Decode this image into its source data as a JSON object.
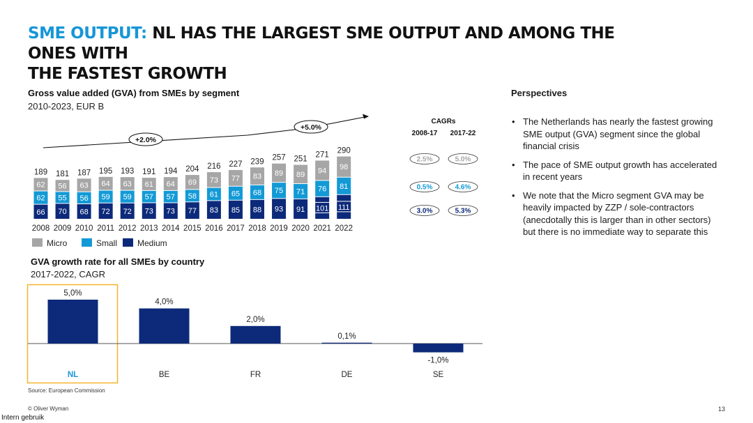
{
  "title": {
    "accent": "SME OUTPUT:",
    "line1": " NL HAS THE LARGEST SME OUTPUT AND AMONG THE ONES WITH",
    "line2": "THE FASTEST GROWTH"
  },
  "colors": {
    "micro": "#a6a6a6",
    "small": "#139ad6",
    "medium": "#0d2a7a",
    "accent": "#1796d6",
    "highlight": "#f3b52e"
  },
  "chart_data": [
    {
      "type": "bar",
      "stacked": true,
      "title": "Gross value added (GVA) from SMEs by segment",
      "subtitle": "2010-2023, EUR B",
      "categories": [
        "2008",
        "2009",
        "2010",
        "2011",
        "2012",
        "2013",
        "2014",
        "2015",
        "2016",
        "2017",
        "2018",
        "2019",
        "2020",
        "2021",
        "2022"
      ],
      "series": [
        {
          "name": "Medium",
          "values": [
            66,
            70,
            68,
            72,
            72,
            73,
            73,
            77,
            83,
            85,
            88,
            93,
            91,
            101,
            111
          ]
        },
        {
          "name": "Small",
          "values": [
            62,
            55,
            56,
            59,
            59,
            57,
            57,
            58,
            61,
            65,
            68,
            75,
            71,
            76,
            81
          ]
        },
        {
          "name": "Micro",
          "values": [
            62,
            56,
            63,
            64,
            63,
            61,
            64,
            69,
            73,
            77,
            83,
            89,
            89,
            94,
            98
          ]
        }
      ],
      "totals": [
        189,
        181,
        187,
        195,
        193,
        191,
        194,
        204,
        216,
        227,
        239,
        257,
        251,
        271,
        290
      ],
      "annotations": [
        {
          "label": "+2.0%"
        },
        {
          "label": "+5.0%"
        }
      ],
      "legend": [
        "Micro",
        "Small",
        "Medium"
      ],
      "cagr_table": {
        "title": "CAGRs",
        "periods": [
          "2008-17",
          "2017-22"
        ],
        "rows": [
          {
            "segment": "Micro",
            "values": [
              "2.5%",
              "5.0%"
            ]
          },
          {
            "segment": "Small",
            "values": [
              "0.5%",
              "4.6%"
            ]
          },
          {
            "segment": "Medium",
            "values": [
              "3.0%",
              "5.3%"
            ]
          }
        ]
      }
    },
    {
      "type": "bar",
      "title": "GVA growth rate for all SMEs by country",
      "subtitle": "2017-2022, CAGR",
      "categories": [
        "NL",
        "BE",
        "FR",
        "DE",
        "SE"
      ],
      "values": [
        5.0,
        4.0,
        2.0,
        0.1,
        -1.0
      ],
      "value_labels": [
        "5,0%",
        "4,0%",
        "2,0%",
        "0,1%",
        "-1,0%"
      ],
      "highlight": "NL"
    }
  ],
  "perspectives": {
    "title": "Perspectives",
    "bullets": [
      "The Netherlands has nearly the fastest growing SME output (GVA) segment since the global financial crisis",
      "The pace of SME output growth has accelerated in recent years",
      "We note that the Micro segment GVA may be heavily impacted by ZZP / sole-contractors (anecdotally this is larger than in other sectors) but there is no immediate way to separate this"
    ]
  },
  "footer": {
    "source": "Source: European Commission",
    "copyright": "© Oliver Wyman",
    "page": "13",
    "classification": "Intern gebruik"
  }
}
